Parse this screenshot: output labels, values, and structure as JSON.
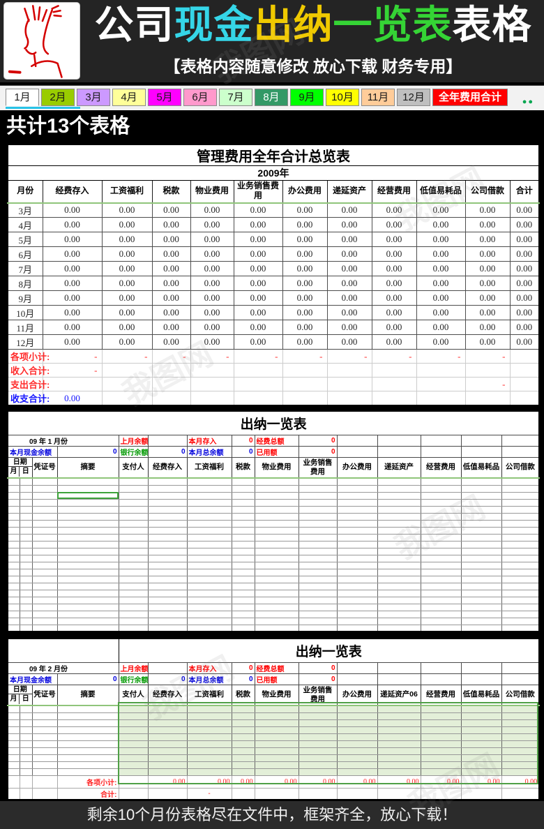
{
  "banner": {
    "title_segments": [
      {
        "text": "公司",
        "color": "#FFFFFF"
      },
      {
        "text": "现金",
        "color": "#35D6E8"
      },
      {
        "text": "出纳",
        "color": "#EFC900"
      },
      {
        "text": "一览表",
        "color": "#35D435"
      },
      {
        "text": "表格",
        "color": "#FFFFFF"
      }
    ],
    "subtitle": "【表格内容随意修改  放心下载 财务专用】"
  },
  "tab_bar": {
    "tabs": [
      {
        "label": "1月",
        "bg": "#FFFFFF",
        "fg": "#1a1a1a",
        "active": true
      },
      {
        "label": "2月",
        "bg": "#99CC00",
        "fg": "#1a1a1a"
      },
      {
        "label": "3月",
        "bg": "#CC99FF",
        "fg": "#1a1a1a"
      },
      {
        "label": "4月",
        "bg": "#FFFF99",
        "fg": "#1a1a1a"
      },
      {
        "label": "5月",
        "bg": "#FF00FF",
        "fg": "#1a1a1a"
      },
      {
        "label": "6月",
        "bg": "#FF99CC",
        "fg": "#1a1a1a"
      },
      {
        "label": "7月",
        "bg": "#CCFFCC",
        "fg": "#1a1a1a"
      },
      {
        "label": "8月",
        "bg": "#339966",
        "fg": "#FFFFFF"
      },
      {
        "label": "9月",
        "bg": "#00FF00",
        "fg": "#1a1a1a"
      },
      {
        "label": "10月",
        "bg": "#FFFF00",
        "fg": "#1a1a1a"
      },
      {
        "label": "11月",
        "bg": "#FFCC99",
        "fg": "#1a1a1a"
      },
      {
        "label": "12月",
        "bg": "#BFBFBF",
        "fg": "#1a1a1a"
      },
      {
        "label": "全年费用合计",
        "bg": "#FF0000",
        "fg": "#FFFFFF",
        "wide": true
      }
    ],
    "more_indicator": "●●"
  },
  "section_bar": {
    "text": "共计13个表格"
  },
  "summary_table": {
    "title": "管理费用全年合计总览表",
    "year": "2009年",
    "columns": [
      "月份",
      "经费存入",
      "工资福利",
      "税款",
      "物业费用",
      "业务销售费用",
      "办公费用",
      "递延资产",
      "经营费用",
      "低值易耗品",
      "公司借款",
      "合计"
    ],
    "rows": [
      {
        "month": "3月",
        "values": [
          "0.00",
          "0.00",
          "0.00",
          "0.00",
          "0.00",
          "0.00",
          "0.00",
          "0.00",
          "0.00",
          "0.00",
          "0.00"
        ]
      },
      {
        "month": "4月",
        "values": [
          "0.00",
          "0.00",
          "0.00",
          "0.00",
          "0.00",
          "0.00",
          "0.00",
          "0.00",
          "0.00",
          "0.00",
          "0.00"
        ]
      },
      {
        "month": "5月",
        "values": [
          "0.00",
          "0.00",
          "0.00",
          "0.00",
          "0.00",
          "0.00",
          "0.00",
          "0.00",
          "0.00",
          "0.00",
          "0.00"
        ]
      },
      {
        "month": "6月",
        "values": [
          "0.00",
          "0.00",
          "0.00",
          "0.00",
          "0.00",
          "0.00",
          "0.00",
          "0.00",
          "0.00",
          "0.00",
          "0.00"
        ]
      },
      {
        "month": "7月",
        "values": [
          "0.00",
          "0.00",
          "0.00",
          "0.00",
          "0.00",
          "0.00",
          "0.00",
          "0.00",
          "0.00",
          "0.00",
          "0.00"
        ]
      },
      {
        "month": "8月",
        "values": [
          "0.00",
          "0.00",
          "0.00",
          "0.00",
          "0.00",
          "0.00",
          "0.00",
          "0.00",
          "0.00",
          "0.00",
          "0.00"
        ]
      },
      {
        "month": "9月",
        "values": [
          "0.00",
          "0.00",
          "0.00",
          "0.00",
          "0.00",
          "0.00",
          "0.00",
          "0.00",
          "0.00",
          "0.00",
          "0.00"
        ]
      },
      {
        "month": "10月",
        "values": [
          "0.00",
          "0.00",
          "0.00",
          "0.00",
          "0.00",
          "0.00",
          "0.00",
          "0.00",
          "0.00",
          "0.00",
          "0.00"
        ]
      },
      {
        "month": "11月",
        "values": [
          "0.00",
          "0.00",
          "0.00",
          "0.00",
          "0.00",
          "0.00",
          "0.00",
          "0.00",
          "0.00",
          "0.00",
          "0.00"
        ]
      },
      {
        "month": "12月",
        "values": [
          "0.00",
          "0.00",
          "0.00",
          "0.00",
          "0.00",
          "0.00",
          "0.00",
          "0.00",
          "0.00",
          "0.00",
          "0.00"
        ]
      }
    ],
    "summary_rows": [
      {
        "label": "各项小计:",
        "style": "red",
        "values": [
          "-",
          "-",
          "-",
          "-",
          "-",
          "-",
          "-",
          "-",
          "-",
          "-",
          ""
        ]
      },
      {
        "label": "收入合计:",
        "style": "red",
        "values": [
          "-",
          "",
          "",
          "",
          "",
          "",
          "",
          "",
          "",
          "",
          ""
        ]
      },
      {
        "label": "支出合计:",
        "style": "red",
        "values": [
          "",
          "",
          "",
          "",
          "",
          "",
          "",
          "",
          "",
          "-",
          ""
        ]
      },
      {
        "label": "收支合计:",
        "style": "blue",
        "values": [
          "0.00",
          "",
          "",
          "",
          "",
          "",
          "",
          "",
          "",
          "",
          ""
        ]
      }
    ]
  },
  "cashier_tables": [
    {
      "title": "出纳一览表",
      "period": {
        "year": "09",
        "year_label": "年",
        "month": "1",
        "month_label": "月份"
      },
      "info_row1": [
        {
          "label": "上月余额",
          "label_style": "red",
          "value": "",
          "value_style": "red"
        },
        {
          "label": "本月存入",
          "label_style": "red",
          "value": "0",
          "value_style": "red"
        },
        {
          "label": "经费总额",
          "label_style": "red",
          "value": "0",
          "value_style": "red"
        }
      ],
      "info_row2": [
        {
          "label": "本月现金余额",
          "label_style": "blue",
          "value": "0",
          "value_style": "blue"
        },
        {
          "label": "银行余额",
          "label_style": "green",
          "value": "0",
          "value_style": "blue"
        },
        {
          "label": "本月总余额",
          "label_style": "blue",
          "value": "0",
          "value_style": "blue"
        },
        {
          "label": "已用额",
          "label_style": "red",
          "value": "0",
          "value_style": "red"
        }
      ],
      "date_header": {
        "top": "日期",
        "month": "月",
        "day": "日"
      },
      "columns": [
        "凭证号",
        "摘要",
        "支付人",
        "经费存入",
        "工资福利",
        "税款",
        "物业费用",
        "业务销售费用",
        "办公费用",
        "递延资产",
        "经营费用",
        "低值易耗品",
        "公司借款"
      ],
      "empty_row_count": 22,
      "selected_cell": {
        "row": 2,
        "column": "摘要"
      }
    },
    {
      "title": "出纳一览表",
      "period": {
        "year": "09",
        "year_label": "年",
        "month": "2",
        "month_label": "月份"
      },
      "info_row1": [
        {
          "label": "上月余额",
          "label_style": "red",
          "value": "",
          "value_style": "red"
        },
        {
          "label": "本月存入",
          "label_style": "red",
          "value": "0",
          "value_style": "red"
        },
        {
          "label": "经费总额",
          "label_style": "red",
          "value": "0",
          "value_style": "red"
        }
      ],
      "info_row2": [
        {
          "label": "本月现金余额",
          "label_style": "blue",
          "value": "0",
          "value_style": "blue"
        },
        {
          "label": "银行余额",
          "label_style": "green",
          "value": "0",
          "value_style": "blue"
        },
        {
          "label": "本月总余额",
          "label_style": "blue",
          "value": "0",
          "value_style": "blue"
        },
        {
          "label": "已用额",
          "label_style": "red",
          "value": "0",
          "value_style": "red"
        }
      ],
      "date_header": {
        "top": "日期",
        "month": "月",
        "day": "日"
      },
      "columns": [
        "凭证号",
        "摘要",
        "支付人",
        "经费存入",
        "工资福利",
        "税款",
        "物业费用",
        "业务销售费用",
        "办公费用",
        "递延资产06",
        "经营费用",
        "低值易耗品",
        "公司借款"
      ],
      "empty_row_count": 10,
      "subtotal_row": {
        "label": "各项小计:",
        "values": [
          "0.00",
          "0.00",
          "0.00",
          "0.00",
          "0.00",
          "0.00",
          "0.00",
          "0.00",
          "0.00",
          "0.00"
        ]
      },
      "total_row": {
        "label": "合计:",
        "value": "-",
        "value_column": "工资福利"
      }
    }
  ],
  "footer": {
    "text": "剩余10个月份表格尽在文件中，框架齐全，放心下载！"
  },
  "watermark": {
    "text": "我图网"
  }
}
